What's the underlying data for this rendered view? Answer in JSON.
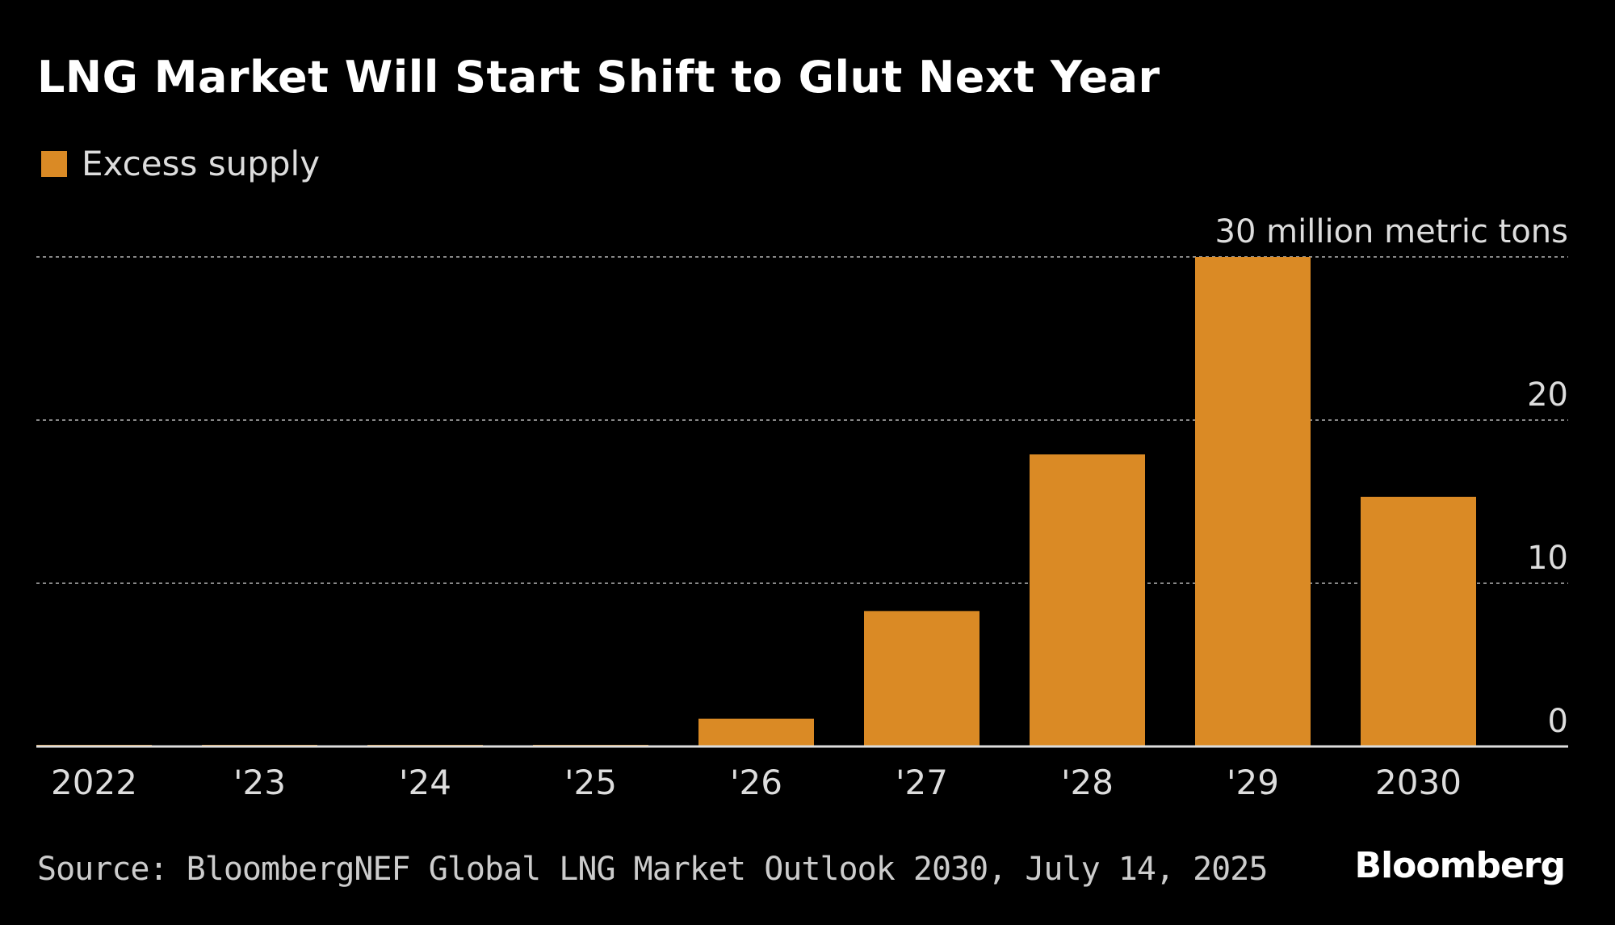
{
  "title": "LNG Market Will Start Shift to Glut Next Year",
  "source": "Source: BloombergNEF Global LNG Market Outlook 2030, July 14, 2025",
  "logo": "Bloomberg",
  "colors": {
    "bar": "#DA8A25",
    "grid": "#888888",
    "axis": "#dddddd"
  },
  "chart_data": {
    "type": "bar",
    "title": "LNG Market Will Start Shift to Glut Next Year",
    "legend": [
      "Excess supply"
    ],
    "legend_placement": "top-left",
    "categories": [
      "2022",
      "'23",
      "'24",
      "'25",
      "'26",
      "'27",
      "'28",
      "'29",
      "2030"
    ],
    "series": [
      {
        "name": "Excess supply",
        "values": [
          0.1,
          0.1,
          0.1,
          0.1,
          1.7,
          8.3,
          17.9,
          30,
          15.3
        ]
      }
    ],
    "ylabel": "30 million metric tons",
    "ylim": [
      0,
      30
    ],
    "yticks": [
      0,
      10,
      20,
      30
    ],
    "ytick_labels": [
      "0",
      "10",
      "20",
      "30 million metric tons"
    ],
    "grid": true
  }
}
